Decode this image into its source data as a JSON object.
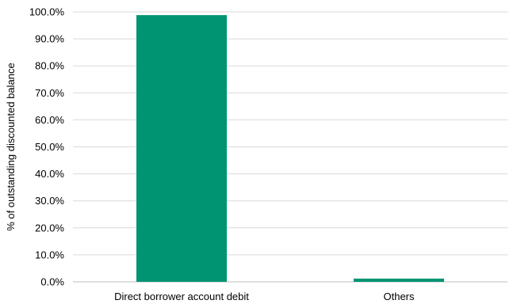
{
  "chart_data": {
    "type": "bar",
    "title": "",
    "xlabel": "",
    "ylabel": "% of outstanding discounted balance",
    "categories": [
      "Direct borrower account debit",
      "Others"
    ],
    "values": [
      98.8,
      1.2
    ],
    "ylim": [
      0,
      100
    ],
    "yticks": [
      "0.0%",
      "10.0%",
      "20.0%",
      "30.0%",
      "40.0%",
      "50.0%",
      "60.0%",
      "70.0%",
      "80.0%",
      "90.0%",
      "100.0%"
    ],
    "grid": true,
    "legend": "none",
    "bar_color": "#009473",
    "grid_color": "#d9d9d9"
  }
}
